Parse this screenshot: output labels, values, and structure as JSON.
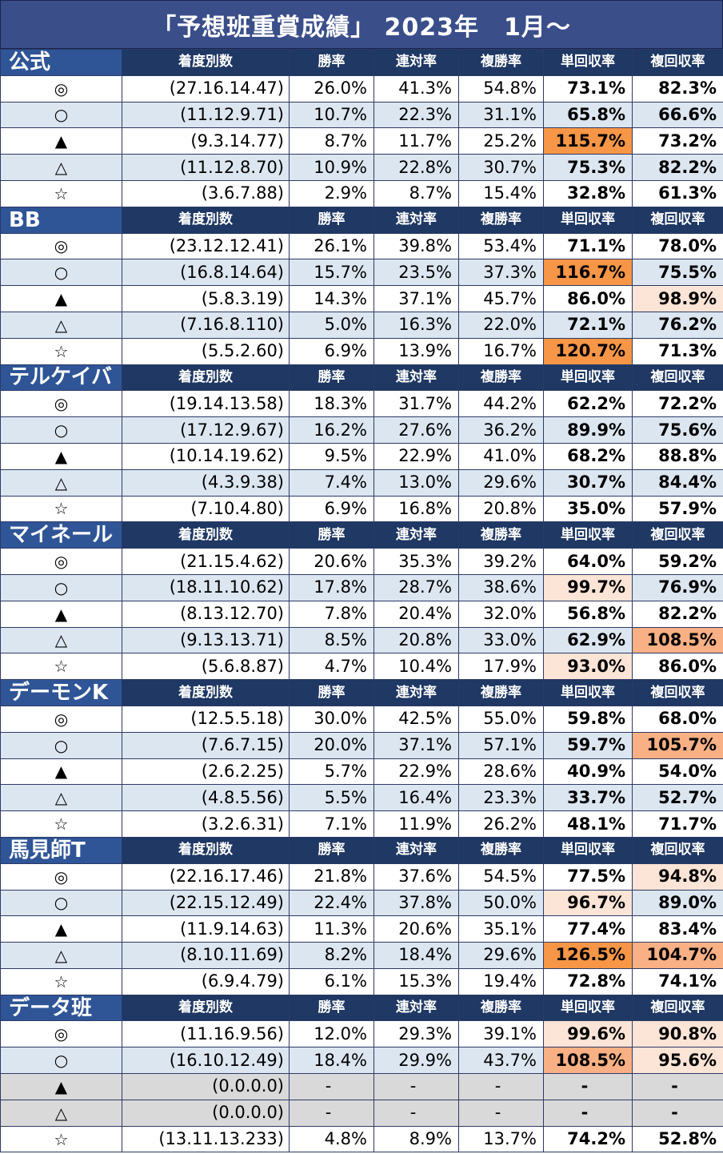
{
  "title": "「予想班重賞成績」 2023年　1月～",
  "columns": [
    "着度別数",
    "勝率",
    "連対率",
    "複勝率",
    "単回収率",
    "複回収率"
  ],
  "groups": [
    {
      "name": "公式",
      "rows": [
        {
          "mark": "◎",
          "counts": "(27.16.14.47)",
          "win": "26.0%",
          "quinella": "41.3%",
          "place": "54.8%",
          "tan_ret": "73.1%",
          "fuku_ret": "82.3%"
        },
        {
          "mark": "○",
          "counts": "(11.12.9.71)",
          "win": "10.7%",
          "quinella": "22.3%",
          "place": "31.1%",
          "tan_ret": "65.8%",
          "fuku_ret": "66.6%"
        },
        {
          "mark": "▲",
          "counts": "(9.3.14.77)",
          "win": "8.7%",
          "quinella": "11.7%",
          "place": "25.2%",
          "tan_ret": "115.7%",
          "fuku_ret": "73.2%",
          "tan_hl": "strong"
        },
        {
          "mark": "△",
          "counts": "(11.12.8.70)",
          "win": "10.9%",
          "quinella": "22.8%",
          "place": "30.7%",
          "tan_ret": "75.3%",
          "fuku_ret": "82.2%"
        },
        {
          "mark": "☆",
          "counts": "(3.6.7.88)",
          "win": "2.9%",
          "quinella": "8.7%",
          "place": "15.4%",
          "tan_ret": "32.8%",
          "fuku_ret": "61.3%"
        }
      ]
    },
    {
      "name": "BB",
      "rows": [
        {
          "mark": "◎",
          "counts": "(23.12.12.41)",
          "win": "26.1%",
          "quinella": "39.8%",
          "place": "53.4%",
          "tan_ret": "71.1%",
          "fuku_ret": "78.0%"
        },
        {
          "mark": "○",
          "counts": "(16.8.14.64)",
          "win": "15.7%",
          "quinella": "23.5%",
          "place": "37.3%",
          "tan_ret": "116.7%",
          "fuku_ret": "75.5%",
          "tan_hl": "strong"
        },
        {
          "mark": "▲",
          "counts": "(5.8.3.19)",
          "win": "14.3%",
          "quinella": "37.1%",
          "place": "45.7%",
          "tan_ret": "86.0%",
          "fuku_ret": "98.9%",
          "fuku_hl": "light"
        },
        {
          "mark": "△",
          "counts": "(7.16.8.110)",
          "win": "5.0%",
          "quinella": "16.3%",
          "place": "22.0%",
          "tan_ret": "72.1%",
          "fuku_ret": "76.2%"
        },
        {
          "mark": "☆",
          "counts": "(5.5.2.60)",
          "win": "6.9%",
          "quinella": "13.9%",
          "place": "16.7%",
          "tan_ret": "120.7%",
          "fuku_ret": "71.3%",
          "tan_hl": "strong"
        }
      ]
    },
    {
      "name": "テルケイバ",
      "rows": [
        {
          "mark": "◎",
          "counts": "(19.14.13.58)",
          "win": "18.3%",
          "quinella": "31.7%",
          "place": "44.2%",
          "tan_ret": "62.2%",
          "fuku_ret": "72.2%"
        },
        {
          "mark": "○",
          "counts": "(17.12.9.67)",
          "win": "16.2%",
          "quinella": "27.6%",
          "place": "36.2%",
          "tan_ret": "89.9%",
          "fuku_ret": "75.6%"
        },
        {
          "mark": "▲",
          "counts": "(10.14.19.62)",
          "win": "9.5%",
          "quinella": "22.9%",
          "place": "41.0%",
          "tan_ret": "68.2%",
          "fuku_ret": "88.8%"
        },
        {
          "mark": "△",
          "counts": "(4.3.9.38)",
          "win": "7.4%",
          "quinella": "13.0%",
          "place": "29.6%",
          "tan_ret": "30.7%",
          "fuku_ret": "84.4%"
        },
        {
          "mark": "☆",
          "counts": "(7.10.4.80)",
          "win": "6.9%",
          "quinella": "16.8%",
          "place": "20.8%",
          "tan_ret": "35.0%",
          "fuku_ret": "57.9%"
        }
      ]
    },
    {
      "name": "マイネール",
      "rows": [
        {
          "mark": "◎",
          "counts": "(21.15.4.62)",
          "win": "20.6%",
          "quinella": "35.3%",
          "place": "39.2%",
          "tan_ret": "64.0%",
          "fuku_ret": "59.2%"
        },
        {
          "mark": "○",
          "counts": "(18.11.10.62)",
          "win": "17.8%",
          "quinella": "28.7%",
          "place": "38.6%",
          "tan_ret": "99.7%",
          "fuku_ret": "76.9%",
          "tan_hl": "light"
        },
        {
          "mark": "▲",
          "counts": "(8.13.12.70)",
          "win": "7.8%",
          "quinella": "20.4%",
          "place": "32.0%",
          "tan_ret": "56.8%",
          "fuku_ret": "82.2%"
        },
        {
          "mark": "△",
          "counts": "(9.13.13.71)",
          "win": "8.5%",
          "quinella": "20.8%",
          "place": "33.0%",
          "tan_ret": "62.9%",
          "fuku_ret": "108.5%",
          "fuku_hl": "mid"
        },
        {
          "mark": "☆",
          "counts": "(5.6.8.87)",
          "win": "4.7%",
          "quinella": "10.4%",
          "place": "17.9%",
          "tan_ret": "93.0%",
          "fuku_ret": "86.0%",
          "tan_hl": "light"
        }
      ]
    },
    {
      "name": "デーモンK",
      "rows": [
        {
          "mark": "◎",
          "counts": "(12.5.5.18)",
          "win": "30.0%",
          "quinella": "42.5%",
          "place": "55.0%",
          "tan_ret": "59.8%",
          "fuku_ret": "68.0%"
        },
        {
          "mark": "○",
          "counts": "(7.6.7.15)",
          "win": "20.0%",
          "quinella": "37.1%",
          "place": "57.1%",
          "tan_ret": "59.7%",
          "fuku_ret": "105.7%",
          "fuku_hl": "mid"
        },
        {
          "mark": "▲",
          "counts": "(2.6.2.25)",
          "win": "5.7%",
          "quinella": "22.9%",
          "place": "28.6%",
          "tan_ret": "40.9%",
          "fuku_ret": "54.0%"
        },
        {
          "mark": "△",
          "counts": "(4.8.5.56)",
          "win": "5.5%",
          "quinella": "16.4%",
          "place": "23.3%",
          "tan_ret": "33.7%",
          "fuku_ret": "52.7%"
        },
        {
          "mark": "☆",
          "counts": "(3.2.6.31)",
          "win": "7.1%",
          "quinella": "11.9%",
          "place": "26.2%",
          "tan_ret": "48.1%",
          "fuku_ret": "71.7%"
        }
      ]
    },
    {
      "name": "馬見師T",
      "rows": [
        {
          "mark": "◎",
          "counts": "(22.16.17.46)",
          "win": "21.8%",
          "quinella": "37.6%",
          "place": "54.5%",
          "tan_ret": "77.5%",
          "fuku_ret": "94.8%",
          "fuku_hl": "light"
        },
        {
          "mark": "○",
          "counts": "(22.15.12.49)",
          "win": "22.4%",
          "quinella": "37.8%",
          "place": "50.0%",
          "tan_ret": "96.7%",
          "fuku_ret": "89.0%",
          "tan_hl": "light"
        },
        {
          "mark": "▲",
          "counts": "(11.9.14.63)",
          "win": "11.3%",
          "quinella": "20.6%",
          "place": "35.1%",
          "tan_ret": "77.4%",
          "fuku_ret": "83.4%"
        },
        {
          "mark": "△",
          "counts": "(8.10.11.69)",
          "win": "8.2%",
          "quinella": "18.4%",
          "place": "29.6%",
          "tan_ret": "126.5%",
          "fuku_ret": "104.7%",
          "tan_hl": "strong",
          "fuku_hl": "mid"
        },
        {
          "mark": "☆",
          "counts": "(6.9.4.79)",
          "win": "6.1%",
          "quinella": "15.3%",
          "place": "19.4%",
          "tan_ret": "72.8%",
          "fuku_ret": "74.1%"
        }
      ]
    },
    {
      "name": "データ班",
      "rows": [
        {
          "mark": "◎",
          "counts": "(11.16.9.56)",
          "win": "12.0%",
          "quinella": "29.3%",
          "place": "39.1%",
          "tan_ret": "99.6%",
          "fuku_ret": "90.8%",
          "tan_hl": "light",
          "fuku_hl": "light"
        },
        {
          "mark": "○",
          "counts": "(16.10.12.49)",
          "win": "18.4%",
          "quinella": "29.9%",
          "place": "43.7%",
          "tan_ret": "108.5%",
          "fuku_ret": "95.6%",
          "tan_hl": "mid",
          "fuku_hl": "light"
        },
        {
          "mark": "▲",
          "counts": "(0.0.0.0)",
          "win": "-",
          "quinella": "-",
          "place": "-",
          "tan_ret": "-",
          "fuku_ret": "-",
          "na": true
        },
        {
          "mark": "△",
          "counts": "(0.0.0.0)",
          "win": "-",
          "quinella": "-",
          "place": "-",
          "tan_ret": "-",
          "fuku_ret": "-",
          "na": true
        },
        {
          "mark": "☆",
          "counts": "(13.11.13.233)",
          "win": "4.8%",
          "quinella": "8.9%",
          "place": "13.7%",
          "tan_ret": "74.2%",
          "fuku_ret": "52.8%"
        }
      ]
    }
  ]
}
